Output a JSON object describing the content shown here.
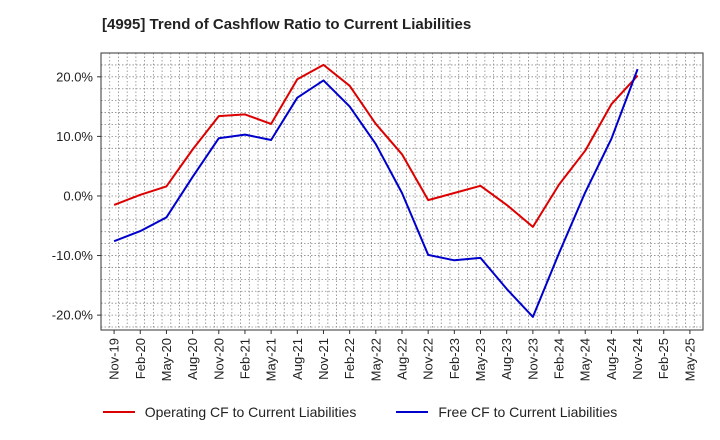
{
  "chart_data": {
    "type": "line",
    "title": "[4995]  Trend of Cashflow Ratio to Current Liabilities",
    "x": [
      "Nov-19",
      "Feb-20",
      "May-20",
      "Aug-20",
      "Nov-20",
      "Feb-21",
      "May-21",
      "Aug-21",
      "Nov-21",
      "Feb-22",
      "May-22",
      "Aug-22",
      "Nov-22",
      "Feb-23",
      "May-23",
      "Aug-23",
      "Nov-23",
      "Feb-24",
      "May-24",
      "Aug-24",
      "Nov-24",
      "Feb-25",
      "May-25"
    ],
    "y_ticks": [
      "20.0%",
      "10.0%",
      "0.0%",
      "-10.0%",
      "-20.0%"
    ],
    "y_tick_values": [
      20,
      10,
      0,
      -10,
      -20
    ],
    "ylim": [
      -22.5,
      24
    ],
    "grid": true,
    "legend_position": "bottom",
    "series": [
      {
        "name": "Operating CF to Current Liabilities",
        "color": "#dd0000",
        "values": [
          -1.5,
          0.2,
          1.6,
          7.8,
          13.4,
          13.7,
          12.1,
          19.6,
          22.0,
          18.5,
          12.1,
          7.0,
          -0.7,
          0.5,
          1.7,
          -1.5,
          -5.2,
          1.9,
          7.6,
          15.4,
          20.2,
          null,
          null
        ]
      },
      {
        "name": "Free CF to Current Liabilities",
        "color": "#0000cc",
        "values": [
          -7.6,
          -5.9,
          -3.6,
          3.2,
          9.7,
          10.3,
          9.4,
          16.5,
          19.4,
          15.0,
          8.7,
          0.5,
          -9.9,
          -10.8,
          -10.4,
          -15.6,
          -20.3,
          -9.6,
          0.6,
          9.6,
          21.3,
          null,
          null
        ]
      }
    ]
  }
}
